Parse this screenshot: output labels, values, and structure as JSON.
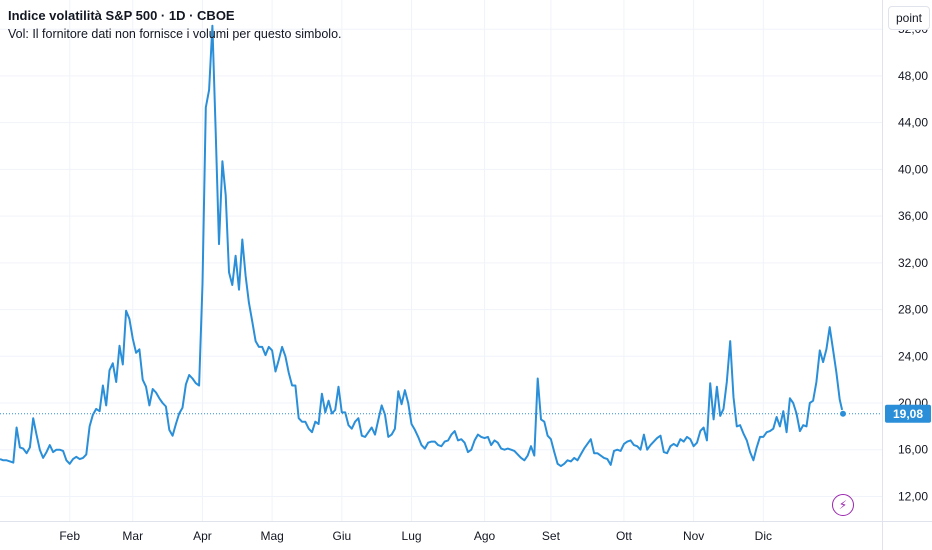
{
  "header": {
    "title": "Indice volatilità S&P 500 · 1D · CBOE",
    "note": "Vol: Il fornitore dati non fornisce i volumi per questo simbolo."
  },
  "controls": {
    "unit_label": "point",
    "flash_icon": "lightning-bolt-icon"
  },
  "colors": {
    "line": "#2a8fd8",
    "grid": "#f0f3fa",
    "last_price_bg": "#2a8fd8",
    "flash": "#9c27b0"
  },
  "chart_data": {
    "type": "line",
    "title": "Indice volatilità S&P 500 · 1D · CBOE",
    "xlabel": "",
    "ylabel": "",
    "y_axis_position": "right",
    "y_ticks": [
      "12,00",
      "16,00",
      "20,00",
      "24,00",
      "28,00",
      "32,00",
      "36,00",
      "40,00",
      "44,00",
      "48,00",
      "52,00"
    ],
    "y_tick_values": [
      12,
      16,
      20,
      24,
      28,
      32,
      36,
      40,
      44,
      48,
      52
    ],
    "ylim": [
      9.9,
      54.5
    ],
    "x_tick_labels": [
      "Feb",
      "Mar",
      "Apr",
      "Mag",
      "Giu",
      "Lug",
      "Ago",
      "Set",
      "Ott",
      "Nov",
      "Dic"
    ],
    "x_tick_indices": [
      21,
      40,
      61,
      82,
      103,
      124,
      146,
      166,
      188,
      209,
      230
    ],
    "xlim": [
      0,
      233
    ],
    "grid": true,
    "last_value": 19.08,
    "last_value_label": "19,08",
    "series": [
      {
        "values": [
          15.2,
          15.1,
          15.1,
          15,
          14.9,
          17.9,
          16.2,
          16.1,
          15.7,
          16.2,
          18.7,
          17.3,
          16,
          15.3,
          15.8,
          16.4,
          15.8,
          16,
          16,
          15.9,
          15.1,
          14.8,
          15.2,
          15.4,
          15.2,
          15.3,
          15.6,
          18,
          19,
          19.5,
          19.3,
          21.5,
          19.8,
          22.8,
          23.4,
          21.8,
          24.9,
          23.3,
          27.9,
          27.2,
          25.5,
          24.3,
          24.6,
          22,
          21.4,
          19.8,
          21.2,
          20.9,
          20.4,
          20,
          19.7,
          17.7,
          17.2,
          18.2,
          19.1,
          19.6,
          21.6,
          22.4,
          22.1,
          21.7,
          21.5,
          30.2,
          45.3,
          46.8,
          52.3,
          43.2,
          33.6,
          40.7,
          37.8,
          31.2,
          30.1,
          32.6,
          29.7,
          34,
          30.9,
          28.6,
          27,
          25.3,
          24.8,
          24.8,
          24.1,
          24.8,
          24.5,
          22.7,
          23.7,
          24.8,
          24,
          22.6,
          21.5,
          21.5,
          18.7,
          18.4,
          18.4,
          17.8,
          17.5,
          18.4,
          18.2,
          20.8,
          19.2,
          20.2,
          19.1,
          19.4,
          21.4,
          19.2,
          19.2,
          18.1,
          17.8,
          18.4,
          18.7,
          17.2,
          17.1,
          17.5,
          17.9,
          17.3,
          18.6,
          19.8,
          19,
          17.1,
          17.3,
          17.8,
          21,
          19.9,
          21.1,
          20,
          18.2,
          17.7,
          17.1,
          16.4,
          16.1,
          16.6,
          16.7,
          16.7,
          16.4,
          16.3,
          16.7,
          16.8,
          17.3,
          17.6,
          16.8,
          16.9,
          16.6,
          15.8,
          16,
          16.8,
          17.3,
          17.1,
          17,
          17.1,
          16.4,
          16.8,
          16.6,
          16.1,
          16,
          16.1,
          16,
          15.9,
          15.6,
          15.3,
          15.1,
          15.5,
          16.3,
          15.5,
          22.1,
          18.6,
          18.4,
          17.2,
          16.9,
          15.8,
          14.8,
          14.6,
          14.8,
          15.1,
          15,
          15.3,
          15.1,
          15.6,
          16.1,
          16.5,
          16.9,
          15.7,
          15.7,
          15.5,
          15.3,
          15.2,
          14.7,
          15.9,
          16,
          15.9,
          16.5,
          16.7,
          16.8,
          16.4,
          16.3,
          16,
          17.3,
          16,
          16.4,
          16.7,
          17,
          17.2,
          15.8,
          15.7,
          16.3,
          16.5,
          16.3,
          16.9,
          16.7,
          17.1,
          16.9,
          16.3,
          16.6,
          17.6,
          17.9,
          16.8,
          21.7,
          18.6,
          21.4,
          18.9,
          19.5,
          21.8,
          25.3,
          20.5,
          18,
          18.1,
          17.4,
          16.8,
          15.8,
          15.1,
          16.2,
          17.1,
          17.1,
          17.5,
          17.6,
          17.8,
          18.8,
          18,
          19.3,
          17.5,
          20.4,
          20,
          19.1,
          17.6,
          18.1,
          18,
          20,
          20.2,
          21.8,
          24.5,
          23.5,
          24.6,
          26.5,
          24.6,
          22.6,
          20.3,
          19.08
        ]
      }
    ]
  }
}
